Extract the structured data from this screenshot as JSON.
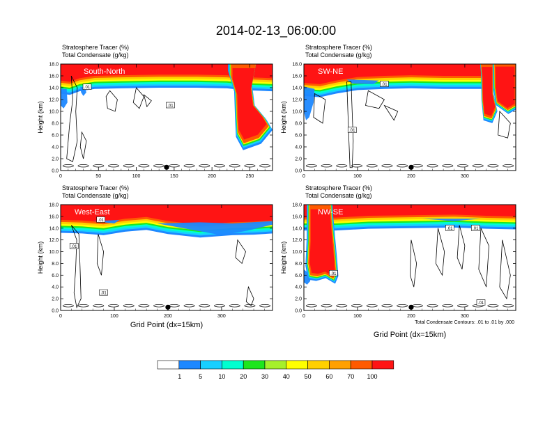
{
  "title": "2014-02-13_06:00:00",
  "chart_data": [
    {
      "type": "heatmap",
      "panel_label": "South-North",
      "subtitle_lines": [
        "Stratosphere Tracer   (%)",
        "Total Condensate   (g/kg)"
      ],
      "ylabel": "Height (km)",
      "xlabel": "",
      "xlim": [
        0,
        280
      ],
      "ylim": [
        0,
        18
      ],
      "xticks": [
        0,
        50,
        100,
        150,
        200,
        250
      ],
      "yticks": [
        "0.0",
        "2.0",
        "4.0",
        "6.0",
        "8.0",
        "10.0",
        "12.0",
        "14.0",
        "16.0",
        "18.0"
      ],
      "marker_x": 140,
      "contour_labels": [
        ".01",
        ".01"
      ]
    },
    {
      "type": "heatmap",
      "panel_label": "SW-NE",
      "subtitle_lines": [
        "Stratosphere Tracer   (%)",
        "Total Condensate   (g/kg)"
      ],
      "ylabel": "Height (km)",
      "xlabel": "",
      "xlim": [
        0,
        395
      ],
      "ylim": [
        0,
        18
      ],
      "xticks": [
        0,
        100,
        200,
        300
      ],
      "yticks": [
        "0.0",
        "2.0",
        "4.0",
        "6.0",
        "8.0",
        "10.0",
        "12.0",
        "14.0",
        "16.0",
        "18.0"
      ],
      "marker_x": 200,
      "contour_labels": [
        ".01",
        ".01"
      ]
    },
    {
      "type": "heatmap",
      "panel_label": "West-East",
      "subtitle_lines": [
        "Stratosphere Tracer   (%)",
        "Total Condensate   (g/kg)"
      ],
      "ylabel": "Height (km)",
      "xlabel": "Grid Point (dx=15km)",
      "xlim": [
        0,
        395
      ],
      "ylim": [
        0,
        18
      ],
      "xticks": [
        0,
        100,
        200,
        300
      ],
      "yticks": [
        "0.0",
        "2.0",
        "4.0",
        "6.0",
        "8.0",
        "10.0",
        "12.0",
        "14.0",
        "16.0",
        "18.0"
      ],
      "marker_x": 200,
      "contour_labels": [
        ".01",
        ".01",
        ".01"
      ]
    },
    {
      "type": "heatmap",
      "panel_label": "NW-SE",
      "subtitle_lines": [
        "Stratosphere Tracer   (%)",
        "Total Condensate   (g/kg)"
      ],
      "ylabel": "Height (km)",
      "xlabel": "Grid Point (dx=15km)",
      "xlim": [
        0,
        395
      ],
      "ylim": [
        0,
        18
      ],
      "xticks": [
        0,
        100,
        200,
        300
      ],
      "yticks": [
        "0.0",
        "2.0",
        "4.0",
        "6.0",
        "8.0",
        "10.0",
        "12.0",
        "14.0",
        "16.0",
        "18.0"
      ],
      "marker_x": 200,
      "contour_labels": [
        ".01",
        ".01",
        ".01",
        ".01"
      ],
      "annotation": "Total Condensate Contours: .01 to .01 by .000"
    }
  ],
  "colorbar": {
    "colors": [
      "#ffffff",
      "#1e88ff",
      "#17d0ff",
      "#00ffd0",
      "#1ee61e",
      "#a6f02a",
      "#ffff00",
      "#ffd000",
      "#ffa000",
      "#ff5a00",
      "#ff1414"
    ],
    "labels": [
      "1",
      "5",
      "10",
      "20",
      "30",
      "40",
      "50",
      "60",
      "70",
      "100"
    ]
  }
}
